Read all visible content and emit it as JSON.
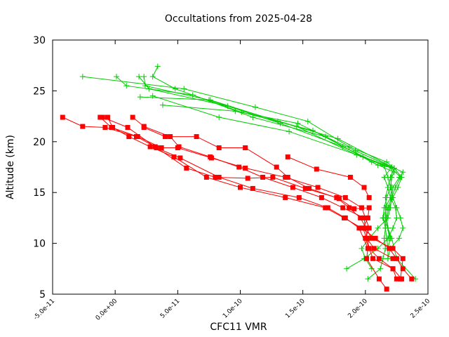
{
  "chart_data": {
    "type": "scatter",
    "title": "Occultations from 2025-04-28",
    "xlabel": "CFC11 VMR",
    "ylabel": "Altitude (km)",
    "xlim": [
      -5e-11,
      2.5e-10
    ],
    "ylim": [
      5,
      30
    ],
    "x_ticks": [
      -5e-11,
      0,
      5e-11,
      1e-10,
      1.5e-10,
      2e-10,
      2.5e-10
    ],
    "x_tick_labels": [
      "-5.0e-11",
      "0.0e+00",
      "5.0e-11",
      "1.0e-10",
      "1.5e-10",
      "2.0e-10",
      "2.5e-10"
    ],
    "y_ticks": [
      5,
      10,
      15,
      20,
      25,
      30
    ],
    "y_tick_labels": [
      "5",
      "10",
      "15",
      "20",
      "25",
      "30"
    ],
    "grid": false,
    "series": [
      {
        "color": "#ff0000",
        "marker": "square",
        "profiles": [
          [
            [
              -1e-11,
              22.4
            ],
            [
              1e-11,
              21.4
            ],
            [
              3.3e-11,
              19.4
            ],
            [
              5.2e-11,
              18.4
            ],
            [
              8.3e-11,
              16.5
            ],
            [
              1.1e-10,
              15.4
            ],
            [
              1.47e-10,
              14.5
            ],
            [
              1.7e-10,
              13.5
            ],
            [
              1.84e-10,
              12.5
            ],
            [
              1.95e-10,
              11.5
            ],
            [
              2.02e-10,
              9.5
            ],
            [
              2.01e-10,
              8.5
            ],
            [
              2.11e-10,
              6.5
            ],
            [
              2.17e-10,
              5.5
            ]
          ],
          [
            [
              -6e-12,
              22.4
            ],
            [
              -2e-12,
              21.4
            ],
            [
              1.1e-11,
              20.5
            ],
            [
              2.8e-11,
              19.5
            ],
            [
              4.7e-11,
              18.5
            ],
            [
              7.3e-11,
              16.5
            ],
            [
              1e-10,
              15.5
            ],
            [
              1.36e-10,
              14.5
            ],
            [
              1.68e-10,
              13.5
            ],
            [
              1.83e-10,
              12.5
            ],
            [
              1.97e-10,
              11.5
            ],
            [
              2.08e-10,
              10.5
            ],
            [
              2.19e-10,
              9.5
            ],
            [
              2.25e-10,
              8.5
            ],
            [
              2.3e-10,
              7.5
            ],
            [
              2.37e-10,
              6.5
            ]
          ],
          [
            [
              -4.2e-11,
              22.4
            ],
            [
              -2.6e-11,
              21.5
            ],
            [
              -8e-12,
              21.4
            ],
            [
              1.7e-11,
              20.5
            ],
            [
              3.2e-11,
              19.5
            ],
            [
              5.7e-11,
              17.4
            ],
            [
              8e-11,
              16.5
            ],
            [
              1.06e-10,
              16.4
            ],
            [
              1.26e-10,
              16.5
            ],
            [
              1.52e-10,
              15.4
            ],
            [
              1.77e-10,
              14.5
            ],
            [
              1.87e-10,
              13.5
            ],
            [
              1.96e-10,
              12.5
            ],
            [
              2.05e-10,
              10.5
            ],
            [
              2.22e-10,
              9.5
            ],
            [
              2.3e-10,
              8.5
            ],
            [
              2.28e-10,
              6.5
            ]
          ],
          [
            [
              -1.2e-11,
              22.4
            ],
            [
              -3e-12,
              21.4
            ],
            [
              1.8e-11,
              20.5
            ],
            [
              3.7e-11,
              19.4
            ],
            [
              5e-11,
              19.4
            ],
            [
              7.7e-11,
              18.4
            ],
            [
              1.04e-10,
              17.4
            ],
            [
              1.36e-10,
              16.5
            ],
            [
              1.62e-10,
              15.5
            ],
            [
              1.84e-10,
              14.5
            ],
            [
              1.97e-10,
              13.5
            ],
            [
              2.03e-10,
              11.5
            ],
            [
              2e-10,
              10.5
            ],
            [
              2.06e-10,
              8.5
            ],
            [
              2.22e-10,
              7.5
            ],
            [
              2.25e-10,
              6.5
            ]
          ],
          [
            [
              1.4e-11,
              22.4
            ],
            [
              2.3e-11,
              21.5
            ],
            [
              4.4e-11,
              20.5
            ],
            [
              5.1e-11,
              19.5
            ],
            [
              7.6e-11,
              18.5
            ],
            [
              9.9e-11,
              17.5
            ],
            [
              1.18e-10,
              16.5
            ],
            [
              1.42e-10,
              15.5
            ],
            [
              1.65e-10,
              14.5
            ],
            [
              1.82e-10,
              13.5
            ],
            [
              1.99e-10,
              12.5
            ],
            [
              2e-10,
              11.5
            ],
            [
              2.03e-10,
              9.5
            ],
            [
              2.11e-10,
              8.5
            ],
            [
              2.22e-10,
              7.5
            ],
            [
              2.29e-10,
              6.5
            ]
          ],
          [
            [
              2.3e-11,
              21.4
            ],
            [
              4e-11,
              20.5
            ],
            [
              6.5e-11,
              20.5
            ],
            [
              8.3e-11,
              19.4
            ],
            [
              1.04e-10,
              19.4
            ],
            [
              1.29e-10,
              17.5
            ],
            [
              1.38e-10,
              16.5
            ],
            [
              1.55e-10,
              15.4
            ],
            [
              1.79e-10,
              14.4
            ],
            [
              1.91e-10,
              13.4
            ],
            [
              2.03e-10,
              13.5
            ],
            [
              2.02e-10,
              12.5
            ],
            [
              1.98e-10,
              11.5
            ],
            [
              2.01e-10,
              10.5
            ],
            [
              2.07e-10,
              9.5
            ],
            [
              2.22e-10,
              8.5
            ]
          ],
          [
            [
              1.38e-10,
              18.5
            ],
            [
              1.61e-10,
              17.3
            ],
            [
              1.88e-10,
              16.5
            ],
            [
              1.99e-10,
              15.5
            ],
            [
              2.03e-10,
              14.5
            ]
          ]
        ]
      },
      {
        "color": "#00cc00",
        "marker": "plus",
        "profiles": [
          [
            [
              -2.6e-11,
              26.4
            ],
            [
              5.5e-11,
              25.2
            ],
            [
              1.12e-10,
              23.4
            ],
            [
              1.54e-10,
              22.0
            ],
            [
              1.87e-10,
              19.5
            ],
            [
              2.17e-10,
              18.0
            ],
            [
              2.23e-10,
              17.4
            ],
            [
              2.29e-10,
              16.5
            ],
            [
              2.26e-10,
              15.5
            ],
            [
              2.22e-10,
              14.5
            ],
            [
              2.19e-10,
              13.5
            ],
            [
              2.17e-10,
              12.5
            ],
            [
              2.18e-10,
              11.5
            ],
            [
              2.2e-10,
              10.5
            ],
            [
              2.18e-10,
              9.5
            ]
          ],
          [
            [
              3.4e-11,
              27.4
            ],
            [
              3e-11,
              26.4
            ],
            [
              4.8e-11,
              25.2
            ],
            [
              1.01e-10,
              22.9
            ],
            [
              1.58e-10,
              21.1
            ],
            [
              2.1e-10,
              17.7
            ],
            [
              2.23e-10,
              17.4
            ],
            [
              2.3e-10,
              17.0
            ],
            [
              2.27e-10,
              16.5
            ],
            [
              2.22e-10,
              15.5
            ],
            [
              2.21e-10,
              14.5
            ],
            [
              2.18e-10,
              13.5
            ],
            [
              2.16e-10,
              12.5
            ],
            [
              2.18e-10,
              11.5
            ],
            [
              2.19e-10,
              10.5
            ]
          ],
          [
            [
              1e-12,
              26.4
            ],
            [
              9e-12,
              25.5
            ],
            [
              6.2e-11,
              24.6
            ],
            [
              1.1e-10,
              22.4
            ],
            [
              1.68e-10,
              20.5
            ],
            [
              2.05e-10,
              18.0
            ],
            [
              2.23e-10,
              17.0
            ],
            [
              2.21e-10,
              16.5
            ],
            [
              2.2e-10,
              15.5
            ],
            [
              2.17e-10,
              14.5
            ],
            [
              2.15e-10,
              13.5
            ],
            [
              2.14e-10,
              12.5
            ],
            [
              2.16e-10,
              11.5
            ],
            [
              2.17e-10,
              10.5
            ],
            [
              2.18e-10,
              9.5
            ],
            [
              2.18e-10,
              8.5
            ]
          ],
          [
            [
              2.3e-11,
              26.4
            ],
            [
              2.4e-11,
              25.5
            ],
            [
              7.5e-11,
              24.1
            ],
            [
              1.32e-10,
              21.8
            ],
            [
              1.82e-10,
              19.5
            ],
            [
              2.15e-10,
              17.6
            ],
            [
              2.18e-10,
              16.5
            ],
            [
              2.2e-10,
              15.5
            ],
            [
              2.22e-10,
              14.5
            ],
            [
              2.25e-10,
              13.5
            ],
            [
              2.28e-10,
              12.5
            ],
            [
              2.3e-10,
              11.5
            ],
            [
              2.27e-10,
              10.5
            ],
            [
              2.2e-10,
              9.5
            ],
            [
              2.18e-10,
              8.5
            ]
          ],
          [
            [
              1.9e-11,
              26.4
            ],
            [
              2.7e-11,
              25.2
            ],
            [
              9e-11,
              23.5
            ],
            [
              1.45e-10,
              21.5
            ],
            [
              1.93e-10,
              18.7
            ],
            [
              2.21e-10,
              17.4
            ],
            [
              2.28e-10,
              16.5
            ],
            [
              2.24e-10,
              15.5
            ],
            [
              2.21e-10,
              14.5
            ],
            [
              2.2e-10,
              13.5
            ],
            [
              2.18e-10,
              12.5
            ],
            [
              2.1e-10,
              11.5
            ],
            [
              2.03e-10,
              10.5
            ],
            [
              1.97e-10,
              9.5
            ],
            [
              2e-10,
              8.5
            ],
            [
              2.05e-10,
              7.5
            ]
          ],
          [
            [
              2e-11,
              24.4
            ],
            [
              7.6e-11,
              24.1
            ],
            [
              1.3e-10,
              22.0
            ],
            [
              1.78e-10,
              20.3
            ],
            [
              2.23e-10,
              17.4
            ],
            [
              2.2e-10,
              16.5
            ],
            [
              2.18e-10,
              15.5
            ],
            [
              2.2e-10,
              14.5
            ],
            [
              2.24e-10,
              13.5
            ],
            [
              2.25e-10,
              12.5
            ],
            [
              2.22e-10,
              11.5
            ],
            [
              2.18e-10,
              10.5
            ],
            [
              2.1e-10,
              9.5
            ],
            [
              1.99e-10,
              8.5
            ],
            [
              1.85e-10,
              7.5
            ]
          ],
          [
            [
              3e-11,
              24.5
            ],
            [
              8.3e-11,
              22.4
            ],
            [
              1.39e-10,
              21.0
            ],
            [
              1.98e-10,
              18.5
            ],
            [
              2.23e-10,
              17.4
            ],
            [
              2.2e-10,
              16.5
            ],
            [
              2.21e-10,
              15.5
            ],
            [
              2.2e-10,
              14.5
            ],
            [
              2.16e-10,
              13.5
            ],
            [
              2.16e-10,
              12.5
            ],
            [
              2.16e-10,
              11.5
            ],
            [
              2.15e-10,
              10.5
            ],
            [
              2.16e-10,
              9.5
            ],
            [
              2.14e-10,
              8.5
            ],
            [
              2.12e-10,
              7.5
            ],
            [
              2.02e-10,
              6.5
            ]
          ],
          [
            [
              3.8e-11,
              23.6
            ],
            [
              9.6e-11,
              23.0
            ],
            [
              1.46e-10,
              21.8
            ],
            [
              1.92e-10,
              19.1
            ],
            [
              2.21e-10,
              17.5
            ],
            [
              2.15e-10,
              16.5
            ],
            [
              2.18e-10,
              15.5
            ],
            [
              2.16e-10,
              14.5
            ],
            [
              2.17e-10,
              13.5
            ],
            [
              2.14e-10,
              12.5
            ],
            [
              2.18e-10,
              11.5
            ],
            [
              2.21e-10,
              10.5
            ],
            [
              2.25e-10,
              8.5
            ],
            [
              2.4e-10,
              6.5
            ]
          ]
        ]
      }
    ]
  }
}
